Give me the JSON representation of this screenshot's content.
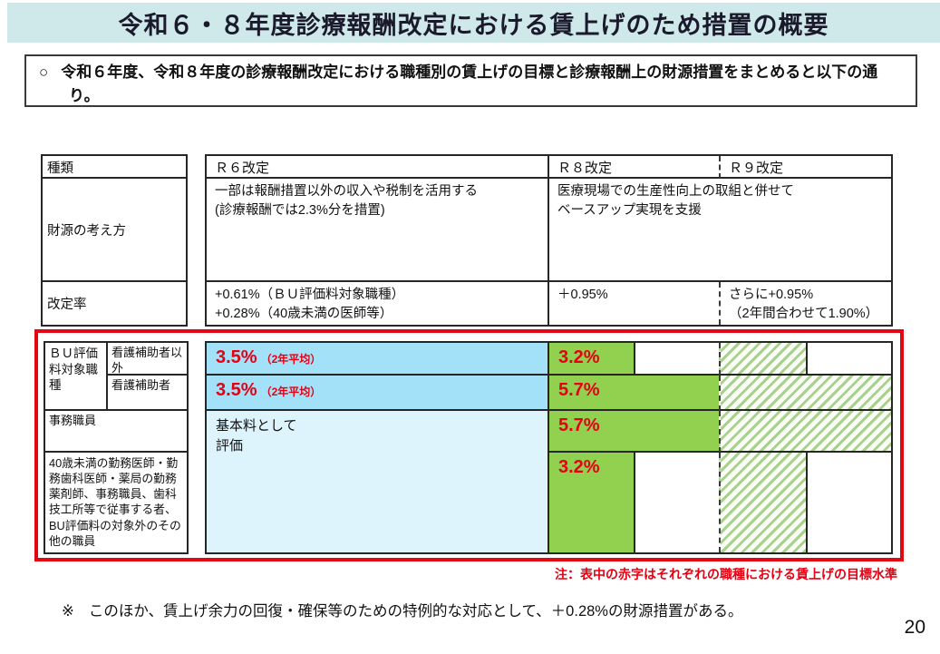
{
  "header": {
    "title": "令和６・８年度診療報酬改定における賃上げのため措置の概要"
  },
  "intro": {
    "bullet": "○",
    "text": "令和６年度、令和８年度の診療報酬改定における職種別の賃上げの目標と診療報酬上の財源措置をまとめると以下の通り。"
  },
  "upper_table": {
    "kind_header": "種類",
    "col_r6": "Ｒ６改定",
    "col_r8": "Ｒ８改定",
    "col_r9": "Ｒ９改定",
    "funding": {
      "label": "財源の考え方",
      "r6_line1": "一部は報酬措置以外の収入や税制を活用する",
      "r6_line2": "(診療報酬では2.3%分を措置)",
      "r8r9_line1": "医療現場での生産性向上の取組と併せて",
      "r8r9_line2": "ベースアップ実現を支援"
    },
    "rate": {
      "label": "改定率",
      "r6_line1": "+0.61%（ＢＵ評価料対象職種）",
      "r6_line2": "+0.28%（40歳未満の医師等）",
      "r8": "＋0.95%",
      "r9_line1": "さらに+0.95%",
      "r9_line2": "（2年間合わせて1.90%）"
    }
  },
  "wage_table": {
    "labels": {
      "bu_group": "ＢＵ評価料対象職種",
      "bu_sub1": "看護補助者以外",
      "bu_sub2": "看護補助者",
      "jimu": "事務職員",
      "under40": "40歳未満の勤務医師・勤務歯科医師・薬局の勤務薬剤師、事務職員、歯科技工所等で従事する者、BU評価料の対象外のその他の職員"
    },
    "cells": {
      "r1_r6_pct": "3.5%",
      "r1_r6_note": "（2年平均）",
      "r1_r8": "3.2%",
      "r2_r6_pct": "3.5%",
      "r2_r6_note": "（2年平均）",
      "r2_r8": "5.7%",
      "r3_r6_line1": "基本料として",
      "r3_r6_line2": "評価",
      "r3_r8": "5.7%",
      "r4_r8": "3.2%"
    },
    "note": "注：表中の赤字はそれぞれの職種における賃上げの目標水準"
  },
  "footer": {
    "marker": "※",
    "text": "このほか、賃上げ余力の回復・確保等のための特例的な対応として、＋0.28%の財源措置がある。",
    "page_number": "20"
  },
  "colors": {
    "banner_bg": "#cfe8ea",
    "target_blue": "#a3e1f8",
    "light_blue": "#def4fc",
    "green": "#92d050",
    "hatch_green": "#a9d18e",
    "accent_red": "#e60012",
    "frame_red": "#e30613"
  }
}
